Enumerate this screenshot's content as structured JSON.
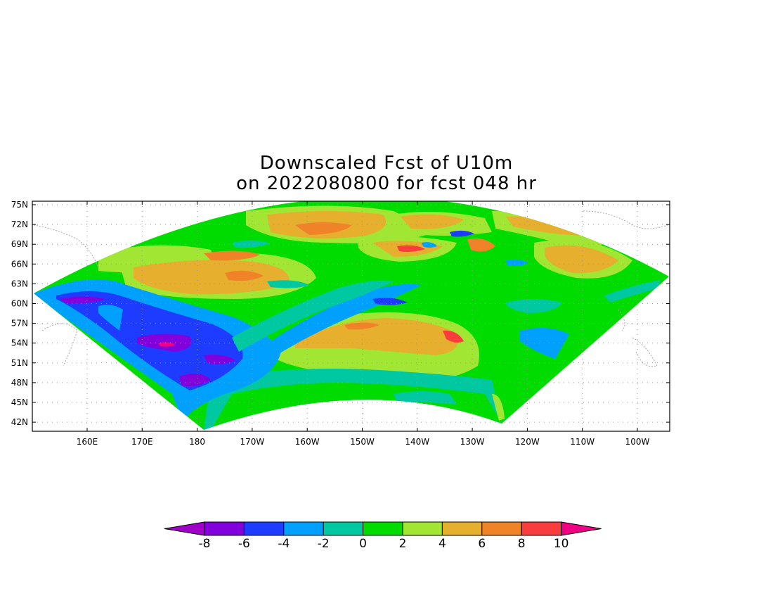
{
  "title": {
    "line1": "Downscaled Fcst of U10m",
    "line2": "on 2022080800 for fcst 048 hr"
  },
  "map": {
    "variable": "U10m",
    "lat_labels": [
      "75N",
      "72N",
      "69N",
      "66N",
      "63N",
      "60N",
      "57N",
      "54N",
      "51N",
      "48N",
      "45N",
      "42N"
    ],
    "lon_labels": [
      "160E",
      "170E",
      "180",
      "170W",
      "160W",
      "150W",
      "140W",
      "130W",
      "120W",
      "110W",
      "100W"
    ],
    "gridlines": "dotted",
    "coastline_color": "#aaaaaa"
  },
  "colorbar": {
    "levels": [
      "-8",
      "-6",
      "-4",
      "-2",
      "0",
      "2",
      "4",
      "6",
      "8",
      "10"
    ],
    "colors": [
      "#a000c8",
      "#8200dc",
      "#1e3cff",
      "#00a0ff",
      "#00c8a0",
      "#00dc00",
      "#a0e632",
      "#e6af2d",
      "#f08228",
      "#fa3c3c",
      "#f00082"
    ],
    "extend": "both"
  }
}
